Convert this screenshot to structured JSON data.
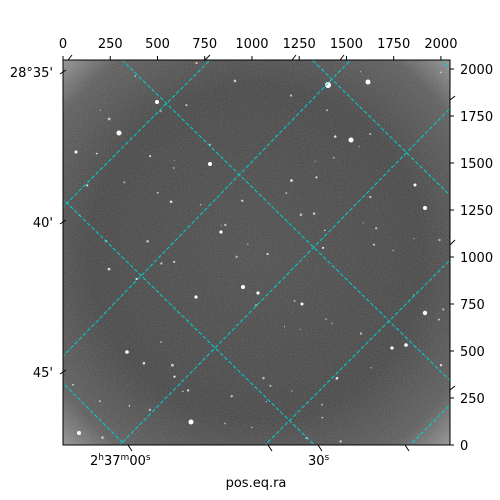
{
  "chart_data": {
    "type": "image",
    "xlabel": "pos.eq.ra",
    "ylabel": "",
    "pixel_axis": {
      "x": {
        "range": [
          0,
          2048
        ],
        "ticks": [
          0,
          250,
          500,
          750,
          1000,
          1250,
          1500,
          1750,
          2000
        ]
      },
      "y": {
        "range": [
          0,
          2048
        ],
        "ticks": [
          0,
          250,
          500,
          750,
          1000,
          1250,
          1500,
          1750,
          2000
        ]
      }
    },
    "world_axis": {
      "ra_ticks": [
        {
          "label_main": "2",
          "sup1": "h",
          "mid": "37",
          "sup2": "m",
          "end": "00",
          "sup3": "s",
          "value": "2h37m00s"
        },
        {
          "label_main": "30",
          "sup1": "s",
          "value": "30s"
        }
      ],
      "dec_ticks": [
        "28°35'",
        "40'",
        "45'"
      ]
    },
    "grid": true,
    "grid_color": "#00d0d0",
    "colormap": "gray"
  }
}
